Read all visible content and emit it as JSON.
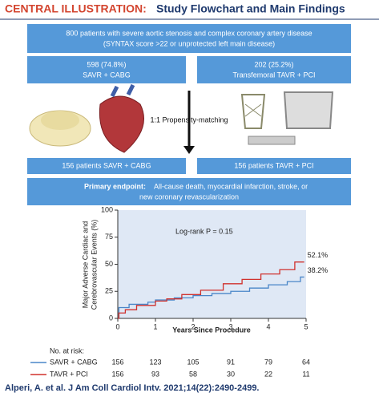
{
  "header": {
    "label": "CENTRAL ILLUSTRATION:",
    "title": "Study Flowchart and Main Findings"
  },
  "flowchart": {
    "population": [
      "800 patients with severe aortic stenosis and complex coronary artery disease",
      "(SYNTAX score >22 or unprotected left main disease)"
    ],
    "groups": [
      {
        "count": "598 (74.8%)",
        "label": "SAVR + CABG",
        "matched": "156 patients SAVR + CABG"
      },
      {
        "count": "202 (25.2%)",
        "label": "Transfemoral TAVR + PCI",
        "matched": "156 patients TAVR + PCI"
      }
    ],
    "matching": "1:1 Propensity-matching",
    "endpoint": {
      "label": "Primary endpoint:",
      "text": [
        "All-cause death, myocardial infarction, stroke, or",
        "new coronary revascularization"
      ]
    }
  },
  "chart_data": {
    "type": "line",
    "ylabel": [
      "Major Adverse Cardiac and",
      "Cerebrovascular Events (%)"
    ],
    "xlabel": "Years Since Procedure",
    "annotation": "Log-rank P = 0.15",
    "xlim": [
      0,
      5
    ],
    "xticks": [
      0,
      1,
      2,
      3,
      4,
      5
    ],
    "ylim": [
      0,
      100
    ],
    "yticks": [
      0,
      25,
      50,
      75,
      100
    ],
    "risk_title": "No. at risk:",
    "series": [
      {
        "name": "SAVR + CABG",
        "color": "#4a86c8",
        "x": [
          0,
          0.03,
          0.03,
          0.3,
          0.3,
          0.8,
          0.8,
          1.0,
          1.0,
          1.5,
          1.5,
          2.0,
          2.0,
          2.5,
          2.5,
          3.0,
          3.0,
          3.5,
          3.5,
          4.0,
          4.0,
          4.5,
          4.5,
          4.85,
          4.85,
          4.95
        ],
        "values": [
          0,
          0,
          10,
          10,
          13,
          13,
          15,
          15,
          17,
          17,
          19,
          19,
          21,
          21,
          23,
          23,
          25,
          25,
          28,
          28,
          31,
          31,
          34,
          34,
          38.2,
          38.2
        ],
        "end_label": "38.2%",
        "at_risk": [
          156,
          123,
          105,
          91,
          79,
          64
        ]
      },
      {
        "name": "TAVR + PCI",
        "color": "#d0312d",
        "x": [
          0,
          0.03,
          0.03,
          0.2,
          0.2,
          0.5,
          0.5,
          1.0,
          1.0,
          1.3,
          1.3,
          1.7,
          1.7,
          2.2,
          2.2,
          2.8,
          2.8,
          3.3,
          3.3,
          3.8,
          3.8,
          4.3,
          4.3,
          4.7,
          4.7,
          4.95
        ],
        "values": [
          0,
          0,
          5,
          5,
          8,
          8,
          12,
          12,
          16,
          16,
          18,
          18,
          22,
          22,
          26,
          26,
          32,
          32,
          36,
          36,
          41,
          41,
          45,
          45,
          52.1,
          52.1
        ],
        "end_label": "52.1%",
        "at_risk": [
          156,
          93,
          58,
          30,
          22,
          11
        ]
      }
    ]
  },
  "citation": "Alperi, A. et al. J Am Coll Cardiol Intv. 2021;14(22):2490-2499."
}
